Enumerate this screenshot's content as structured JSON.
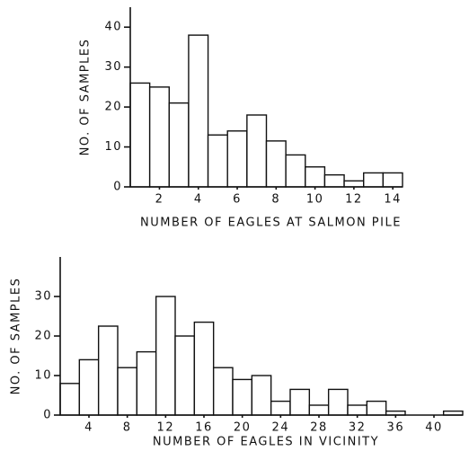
{
  "chart_data": [
    {
      "type": "histogram",
      "x_label": "NUMBER OF EAGLES AT SALMON PILE",
      "y_label": "NO. OF SAMPLES",
      "bins": [
        0.5,
        1.5,
        2.5,
        3.5,
        4.5,
        5.5,
        6.5,
        7.5,
        8.5,
        9.5,
        10.5,
        11.5,
        12.5,
        13.5,
        14.5
      ],
      "values": [
        26,
        25,
        21,
        38,
        13,
        14,
        18,
        11.5,
        8,
        5,
        3,
        1.5,
        3.5,
        3.5
      ],
      "color": "#ffffff",
      "xlim": [
        0.5,
        14.5
      ],
      "ylim": [
        0,
        45
      ],
      "xticks": [
        2,
        4,
        6,
        8,
        10,
        12,
        14
      ],
      "yticks": [
        0,
        10,
        20,
        30,
        40
      ]
    },
    {
      "type": "histogram",
      "x_label": "NUMBER OF EAGLES IN VICINITY",
      "y_label": "NO. OF SAMPLES",
      "bins": [
        1,
        3,
        5,
        7,
        9,
        11,
        13,
        15,
        17,
        19,
        21,
        23,
        25,
        27,
        29,
        31,
        33,
        35,
        37,
        39,
        41,
        43
      ],
      "values": [
        8,
        14,
        22.5,
        12,
        16,
        30,
        20,
        23.5,
        12,
        9,
        10,
        3.5,
        6.5,
        2.5,
        6.5,
        2.5,
        3.5,
        1,
        0,
        0,
        1
      ],
      "color": "#ffffff",
      "xlim": [
        1,
        43
      ],
      "ylim": [
        0,
        40
      ],
      "xticks": [
        4,
        8,
        12,
        16,
        20,
        24,
        28,
        32,
        36,
        40
      ],
      "yticks": [
        0,
        10,
        20,
        30
      ]
    }
  ]
}
